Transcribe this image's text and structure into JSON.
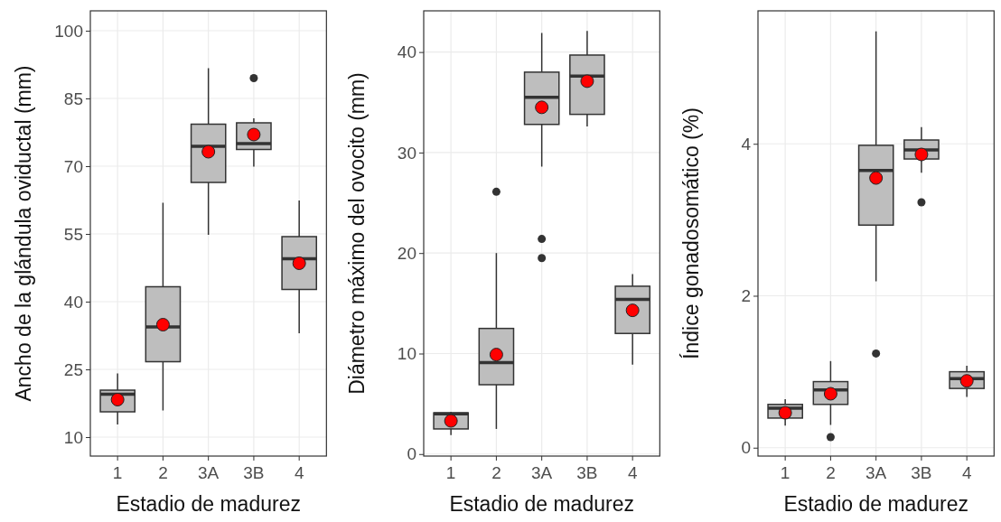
{
  "chart_data": [
    {
      "type": "box",
      "ylabel": "Ancho de la glándula oviductal (mm)",
      "xlabel": "Estadio de madurez",
      "categories": [
        "1",
        "2",
        "3A",
        "3B",
        "4"
      ],
      "ylim": [
        5.8,
        104.4
      ],
      "yticks": [
        10,
        25,
        40,
        55,
        70,
        85,
        100
      ],
      "grid": true,
      "color": "#bebebe",
      "boxes": [
        {
          "low": 12.8,
          "q1": 15.6,
          "median": 19.5,
          "q3": 20.4,
          "high": 24.1,
          "mean": 18.3
        },
        {
          "low": 15.9,
          "q1": 26.7,
          "median": 34.4,
          "q3": 43.3,
          "high": 61.9,
          "mean": 34.9
        },
        {
          "low": 54.8,
          "q1": 66.4,
          "median": 74.4,
          "q3": 79.3,
          "high": 91.7,
          "mean": 73.2
        },
        {
          "low": 69.9,
          "q1": 73.7,
          "median": 75.0,
          "q3": 79.6,
          "high": 80.6,
          "mean": 77.0,
          "outliers": [
            89.5
          ]
        },
        {
          "low": 33.0,
          "q1": 42.7,
          "median": 49.5,
          "q3": 54.4,
          "high": 62.4,
          "mean": 48.5
        }
      ]
    },
    {
      "type": "box",
      "ylabel": "Diámetro máximo del ovocito (mm)",
      "xlabel": "Estadio de madurez",
      "categories": [
        "1",
        "2",
        "3A",
        "3B",
        "4"
      ],
      "ylim": [
        -0.2,
        44.1
      ],
      "yticks": [
        0,
        10,
        20,
        30,
        40
      ],
      "grid": true,
      "color": "#bebebe",
      "boxes": [
        {
          "low": 1.9,
          "q1": 2.5,
          "median": 4.0,
          "q3": 4.1,
          "high": 4.2,
          "mean": 3.3
        },
        {
          "low": 2.5,
          "q1": 6.9,
          "median": 9.1,
          "q3": 12.5,
          "high": 20.0,
          "mean": 9.9,
          "outliers": [
            26.1
          ]
        },
        {
          "low": 28.6,
          "q1": 32.8,
          "median": 35.5,
          "q3": 38.0,
          "high": 41.9,
          "mean": 34.5,
          "outliers": [
            21.4,
            19.5
          ]
        },
        {
          "low": 32.6,
          "q1": 33.8,
          "median": 37.6,
          "q3": 39.7,
          "high": 42.1,
          "mean": 37.1
        },
        {
          "low": 8.9,
          "q1": 12.0,
          "median": 15.4,
          "q3": 16.7,
          "high": 17.9,
          "mean": 14.3
        }
      ]
    },
    {
      "type": "box",
      "ylabel": "Índice gonadosomático (%)",
      "xlabel": "Estadio de madurez",
      "categories": [
        "1",
        "2",
        "3A",
        "3B",
        "4"
      ],
      "ylim": [
        -0.11,
        5.75
      ],
      "yticks": [
        0,
        2,
        4
      ],
      "grid": true,
      "color": "#bebebe",
      "boxes": [
        {
          "low": 0.29,
          "q1": 0.39,
          "median": 0.52,
          "q3": 0.57,
          "high": 0.64,
          "mean": 0.46
        },
        {
          "low": 0.3,
          "q1": 0.57,
          "median": 0.76,
          "q3": 0.87,
          "high": 1.14,
          "mean": 0.71,
          "outliers": [
            0.14
          ]
        },
        {
          "low": 2.19,
          "q1": 2.93,
          "median": 3.65,
          "q3": 3.98,
          "high": 5.48,
          "mean": 3.55,
          "outliers": [
            1.24
          ]
        },
        {
          "low": 3.62,
          "q1": 3.8,
          "median": 3.92,
          "q3": 4.05,
          "high": 4.22,
          "mean": 3.86,
          "outliers": [
            3.23
          ]
        },
        {
          "low": 0.67,
          "q1": 0.78,
          "median": 0.91,
          "q3": 1.0,
          "high": 1.08,
          "mean": 0.88
        }
      ]
    }
  ]
}
